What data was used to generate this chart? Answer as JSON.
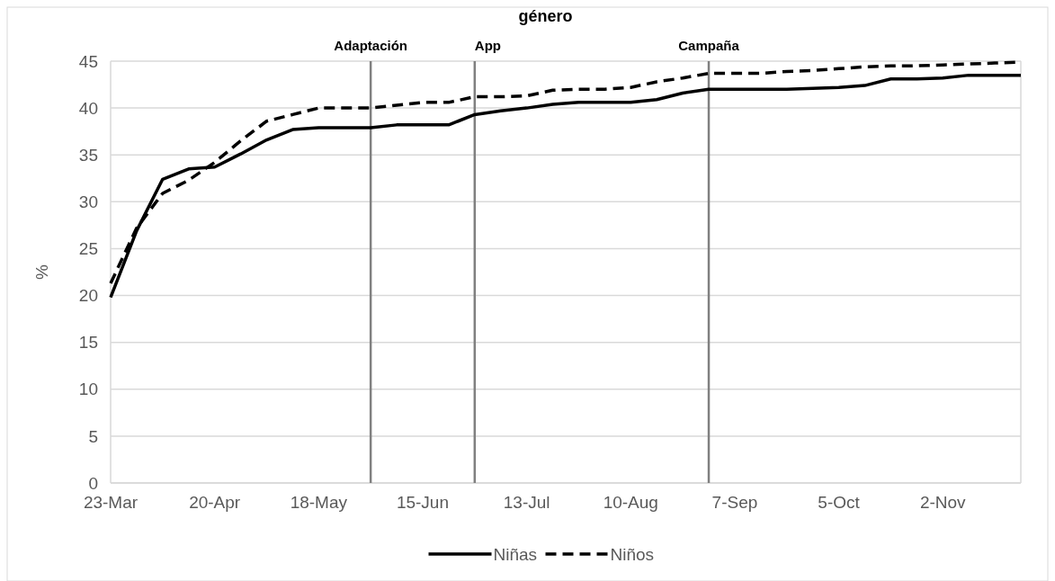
{
  "chart_data": {
    "type": "line",
    "title": "género",
    "ylabel": "%",
    "x": [
      "--03-23",
      "--03-30",
      "--04-06",
      "--04-13",
      "--04-20",
      "--04-27",
      "--05-04",
      "--05-11",
      "--05-18",
      "--05-25",
      "--06-01",
      "--06-08",
      "--06-15",
      "--06-22",
      "--06-29",
      "--07-06",
      "--07-13",
      "--07-20",
      "--07-27",
      "--08-03",
      "--08-10",
      "--08-17",
      "--08-24",
      "--08-31",
      "--09-07",
      "--09-14",
      "--09-21",
      "--09-28",
      "--10-05",
      "--10-12",
      "--10-19",
      "--10-26",
      "--11-02",
      "--11-09",
      "--11-16",
      "--11-23"
    ],
    "series": [
      {
        "name": "Niñas",
        "color": "#000000",
        "line_style": "solid",
        "values": [
          19.8,
          26.9,
          32.4,
          33.5,
          33.7,
          35.1,
          36.6,
          37.7,
          37.9,
          37.9,
          37.9,
          38.2,
          38.2,
          38.2,
          39.3,
          39.7,
          40.0,
          40.4,
          40.6,
          40.6,
          40.6,
          40.9,
          41.6,
          42.0,
          42.0,
          42.0,
          42.0,
          42.1,
          42.2,
          42.4,
          43.1,
          43.1,
          43.2,
          43.5,
          43.5,
          43.5
        ]
      },
      {
        "name": "Niños",
        "color": "#000000",
        "line_style": "dashed",
        "values": [
          21.3,
          27.2,
          30.9,
          32.3,
          34.2,
          36.5,
          38.6,
          39.3,
          40.0,
          40.0,
          40.0,
          40.3,
          40.6,
          40.6,
          41.2,
          41.2,
          41.3,
          41.9,
          42.0,
          42.0,
          42.2,
          42.8,
          43.2,
          43.7,
          43.7,
          43.7,
          43.9,
          44.0,
          44.2,
          44.4,
          44.5,
          44.5,
          44.6,
          44.7,
          44.8,
          44.9
        ]
      }
    ],
    "xlim": [
      "--03-23",
      "--11-23"
    ],
    "xticks": [
      {
        "value": "--03-23",
        "label": "23-Mar"
      },
      {
        "value": "--04-20",
        "label": "20-Apr"
      },
      {
        "value": "--05-18",
        "label": "18-May"
      },
      {
        "value": "--06-15",
        "label": "15-Jun"
      },
      {
        "value": "--07-13",
        "label": "13-Jul"
      },
      {
        "value": "--08-10",
        "label": "10-Aug"
      },
      {
        "value": "--09-07",
        "label": "7-Sep"
      },
      {
        "value": "--10-05",
        "label": "5-Oct"
      },
      {
        "value": "--11-02",
        "label": "2-Nov"
      }
    ],
    "ylim": [
      0,
      45
    ],
    "yticks": [
      0,
      5,
      10,
      15,
      20,
      25,
      30,
      35,
      40,
      45
    ],
    "ref_lines": [
      {
        "axis": "x",
        "value": "--06-01",
        "label": "Adaptación",
        "color": "#808080"
      },
      {
        "axis": "x",
        "value": "--06-29",
        "label": "App",
        "color": "#808080"
      },
      {
        "axis": "x",
        "value": "--08-31",
        "label": "Campaña",
        "color": "#808080"
      }
    ],
    "grid": "y",
    "legend": "bottom",
    "marker": "none"
  }
}
